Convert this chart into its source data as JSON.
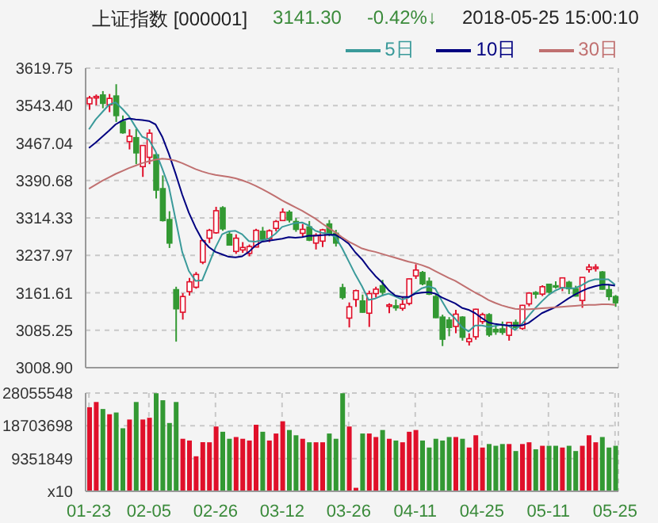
{
  "chart_data": [
    {
      "type": "candlestick",
      "title": "上证指数 [000001]",
      "annotations": [
        "3141.30",
        "-0.42%↓",
        "2018-05-25 15:00:10"
      ],
      "categories": [
        null,
        null,
        null,
        null,
        null,
        null,
        null,
        null,
        null,
        null,
        null,
        null,
        null,
        null,
        null,
        null,
        null,
        null,
        null,
        null,
        null,
        null,
        null,
        null,
        null,
        null,
        null,
        null,
        null,
        null,
        null,
        null,
        null,
        null,
        null,
        null,
        null,
        null,
        null,
        null,
        null,
        null,
        null,
        null,
        null,
        null,
        null,
        null,
        null,
        null,
        null,
        null,
        null,
        null,
        null,
        null,
        null,
        null,
        null,
        null,
        null,
        null,
        null,
        null,
        null,
        null,
        null,
        null,
        null,
        null,
        null,
        null,
        null,
        null,
        null,
        null,
        null,
        null,
        null,
        null
      ],
      "ohlc": [
        [
          3547,
          3563,
          3535,
          3559
        ],
        [
          3559,
          3566,
          3544,
          3562
        ],
        [
          3565,
          3573,
          3538,
          3548
        ],
        [
          3545,
          3567,
          3530,
          3558
        ],
        [
          3563,
          3587,
          3510,
          3523
        ],
        [
          3511,
          3523,
          3486,
          3488
        ],
        [
          3470,
          3495,
          3454,
          3481
        ],
        [
          3478,
          3496,
          3424,
          3447
        ],
        [
          3419,
          3463,
          3398,
          3462
        ],
        [
          3438,
          3495,
          3424,
          3487
        ],
        [
          3443,
          3445,
          3354,
          3371
        ],
        [
          3374,
          3401,
          3307,
          3309
        ],
        [
          3311,
          3328,
          3253,
          3263
        ],
        [
          3168,
          3174,
          3062,
          3129
        ],
        [
          3122,
          3161,
          3107,
          3154
        ],
        [
          3164,
          3192,
          3156,
          3184
        ],
        [
          3173,
          3204,
          3170,
          3199
        ],
        [
          3224,
          3270,
          3220,
          3268
        ],
        [
          3273,
          3292,
          3263,
          3289
        ],
        [
          3284,
          3337,
          3282,
          3329
        ],
        [
          3335,
          3338,
          3288,
          3292
        ],
        [
          3281,
          3286,
          3258,
          3259
        ],
        [
          3246,
          3281,
          3241,
          3273
        ],
        [
          3249,
          3265,
          3243,
          3254
        ],
        [
          3242,
          3260,
          3236,
          3256
        ],
        [
          3255,
          3292,
          3255,
          3289
        ],
        [
          3287,
          3296,
          3267,
          3271
        ],
        [
          3272,
          3291,
          3265,
          3288
        ],
        [
          3293,
          3310,
          3287,
          3307
        ],
        [
          3309,
          3334,
          3308,
          3326
        ],
        [
          3326,
          3330,
          3305,
          3310
        ],
        [
          3307,
          3314,
          3286,
          3291
        ],
        [
          3283,
          3302,
          3276,
          3291
        ],
        [
          3296,
          3308,
          3267,
          3269
        ],
        [
          3263,
          3283,
          3250,
          3279
        ],
        [
          3267,
          3292,
          3255,
          3290
        ],
        [
          3302,
          3310,
          3277,
          3281
        ],
        [
          3283,
          3290,
          3256,
          3263
        ],
        [
          3172,
          3180,
          3148,
          3152
        ],
        [
          3110,
          3142,
          3091,
          3133
        ],
        [
          3148,
          3168,
          3133,
          3166
        ],
        [
          3145,
          3158,
          3121,
          3122
        ],
        [
          3120,
          3166,
          3092,
          3160
        ],
        [
          3160,
          3174,
          3152,
          3169
        ],
        [
          3176,
          3188,
          3155,
          3163
        ],
        [
          3134,
          3140,
          3120,
          3137
        ],
        [
          3135,
          3148,
          3125,
          3131
        ],
        [
          3130,
          3153,
          3125,
          3138
        ],
        [
          3140,
          3191,
          3136,
          3190
        ],
        [
          3196,
          3220,
          3190,
          3208
        ],
        [
          3203,
          3206,
          3177,
          3180
        ],
        [
          3185,
          3193,
          3157,
          3159
        ],
        [
          3154,
          3160,
          3110,
          3111
        ],
        [
          3112,
          3117,
          3053,
          3067
        ],
        [
          3106,
          3112,
          3073,
          3091
        ],
        [
          3093,
          3127,
          3079,
          3118
        ],
        [
          3112,
          3114,
          3064,
          3071
        ],
        [
          3062,
          3079,
          3054,
          3068
        ],
        [
          3072,
          3129,
          3066,
          3128
        ],
        [
          3103,
          3121,
          3098,
          3117
        ],
        [
          3117,
          3120,
          3072,
          3076
        ],
        [
          3087,
          3096,
          3076,
          3082
        ],
        [
          3088,
          3103,
          3076,
          3081
        ],
        [
          3075,
          3101,
          3064,
          3101
        ],
        [
          3101,
          3107,
          3088,
          3091
        ],
        [
          3089,
          3137,
          3086,
          3136
        ],
        [
          3139,
          3163,
          3134,
          3161
        ],
        [
          3162,
          3165,
          3150,
          3159
        ],
        [
          3159,
          3177,
          3155,
          3174
        ],
        [
          3179,
          3180,
          3160,
          3163
        ],
        [
          3176,
          3185,
          3170,
          3174
        ],
        [
          3172,
          3193,
          3165,
          3192
        ],
        [
          3183,
          3186,
          3159,
          3170
        ],
        [
          3170,
          3176,
          3154,
          3155
        ],
        [
          3146,
          3193,
          3131,
          3193
        ],
        [
          3209,
          3220,
          3203,
          3214
        ],
        [
          3211,
          3220,
          3205,
          3214
        ],
        [
          3204,
          3206,
          3168,
          3169
        ],
        [
          3168,
          3179,
          3146,
          3154
        ],
        [
          3154,
          3157,
          3133,
          3141.3
        ]
      ],
      "series": [
        {
          "name": "5日",
          "type": "line",
          "color": "#3a9a9a",
          "values": [
            3495,
            3515,
            3530,
            3545,
            3550,
            3537,
            3522,
            3500,
            3480,
            3474,
            3450,
            3415,
            3378,
            3312,
            3245,
            3206,
            3186,
            3187,
            3220,
            3254,
            3281,
            3287,
            3288,
            3281,
            3267,
            3266,
            3269,
            3272,
            3282,
            3296,
            3300,
            3304,
            3305,
            3299,
            3288,
            3284,
            3282,
            3276,
            3253,
            3226,
            3199,
            3175,
            3147,
            3150,
            3156,
            3160,
            3154,
            3148,
            3152,
            3162,
            3171,
            3175,
            3170,
            3145,
            3122,
            3109,
            3092,
            3083,
            3095,
            3095,
            3092,
            3094,
            3097,
            3094,
            3086,
            3098,
            3114,
            3130,
            3144,
            3157,
            3166,
            3172,
            3171,
            3171,
            3177,
            3185,
            3189,
            3189,
            3189,
            3178
          ]
        },
        {
          "name": "10日",
          "type": "line",
          "color": "#000080",
          "values": [
            3457,
            3468,
            3480,
            3492,
            3505,
            3513,
            3517,
            3515,
            3514,
            3512,
            3505,
            3480,
            3445,
            3405,
            3362,
            3325,
            3295,
            3270,
            3255,
            3245,
            3240,
            3235,
            3234,
            3236,
            3245,
            3258,
            3266,
            3268,
            3270,
            3272,
            3275,
            3274,
            3275,
            3278,
            3278,
            3279,
            3280,
            3280,
            3272,
            3262,
            3244,
            3230,
            3212,
            3196,
            3183,
            3167,
            3156,
            3153,
            3153,
            3160,
            3162,
            3163,
            3160,
            3152,
            3146,
            3140,
            3131,
            3127,
            3120,
            3110,
            3101,
            3098,
            3096,
            3095,
            3095,
            3095,
            3100,
            3110,
            3120,
            3126,
            3132,
            3141,
            3150,
            3158,
            3165,
            3171,
            3175,
            3178,
            3178,
            3176
          ]
        },
        {
          "name": "30日",
          "type": "line",
          "color": "#c07070",
          "values": [
            3374,
            3382,
            3390,
            3397,
            3404,
            3410,
            3416,
            3421,
            3426,
            3430,
            3433,
            3435,
            3434,
            3431,
            3426,
            3420,
            3414,
            3409,
            3405,
            3402,
            3400,
            3398,
            3395,
            3391,
            3386,
            3380,
            3373,
            3366,
            3358,
            3350,
            3343,
            3336,
            3329,
            3321,
            3313,
            3303,
            3294,
            3285,
            3275,
            3266,
            3259,
            3252,
            3248,
            3245,
            3241,
            3237,
            3233,
            3229,
            3225,
            3222,
            3218,
            3213,
            3206,
            3199,
            3192,
            3186,
            3178,
            3170,
            3162,
            3155,
            3147,
            3141,
            3136,
            3132,
            3129,
            3128,
            3128,
            3129,
            3130,
            3131,
            3132,
            3133,
            3134,
            3135,
            3136,
            3137,
            3137,
            3138,
            3138,
            3137
          ]
        }
      ],
      "ylim": [
        3008.9,
        3619.75
      ],
      "yticks": [
        {
          "value": 3008.9,
          "label": "3008.90"
        },
        3085.25,
        3161.61,
        3237.97,
        3314.33,
        3390.68,
        3467.04,
        {
          "value": 3543.4,
          "label": "3543.40"
        },
        3619.75
      ],
      "grid": true,
      "legend": "top right",
      "tick_labels": "y"
    },
    {
      "type": "bar",
      "categories": [
        "01-23",
        null,
        null,
        null,
        null,
        null,
        null,
        null,
        null,
        "02-05",
        null,
        null,
        null,
        null,
        null,
        null,
        null,
        null,
        null,
        "02-26",
        null,
        null,
        null,
        null,
        null,
        null,
        null,
        null,
        null,
        "03-12",
        null,
        null,
        null,
        null,
        null,
        null,
        null,
        null,
        null,
        "03-26",
        null,
        null,
        null,
        null,
        null,
        null,
        null,
        null,
        null,
        "04-11",
        null,
        null,
        null,
        null,
        null,
        null,
        null,
        null,
        null,
        "04-25",
        null,
        null,
        null,
        null,
        null,
        null,
        null,
        null,
        null,
        "05-11",
        null,
        null,
        null,
        null,
        null,
        null,
        null,
        null,
        null,
        "05-25"
      ],
      "values": [
        24000000,
        25500000,
        23500000,
        22000000,
        22500000,
        18000000,
        20500000,
        25500000,
        20500000,
        21000000,
        28000000,
        26000000,
        19500000,
        25500000,
        15000000,
        14500000,
        10000000,
        14000000,
        14000000,
        18500000,
        17000000,
        15000000,
        15500000,
        15000000,
        14500000,
        19000000,
        17000000,
        14500000,
        16500000,
        20000000,
        17500000,
        16000000,
        15000000,
        14000000,
        14000000,
        14000000,
        16500000,
        15000000,
        28000000,
        18500000,
        1000000,
        16500000,
        16500000,
        15500000,
        17500000,
        15000000,
        14500000,
        14000000,
        17000000,
        17500000,
        14500000,
        12500000,
        15000000,
        14500000,
        15500000,
        15500000,
        15000000,
        12500000,
        16000000,
        12500000,
        13500000,
        13000000,
        13500000,
        13500000,
        11500000,
        13500000,
        14000000,
        12000000,
        13000000,
        13000000,
        13000000,
        12500000,
        13000000,
        11500000,
        13000000,
        16000000,
        14000000,
        15500000,
        12500000,
        13000000
      ],
      "colors": [
        "#e0102a",
        "#e0102a",
        "#339933",
        "#e0102a",
        "#339933",
        "#339933",
        "#e0102a",
        "#339933",
        "#e0102a",
        "#e0102a",
        "#339933",
        "#339933",
        "#339933",
        "#339933",
        "#e0102a",
        "#e0102a",
        "#e0102a",
        "#e0102a",
        "#e0102a",
        "#e0102a",
        "#339933",
        "#339933",
        "#e0102a",
        "#e0102a",
        "#e0102a",
        "#e0102a",
        "#339933",
        "#e0102a",
        "#e0102a",
        "#e0102a",
        "#339933",
        "#339933",
        "#e0102a",
        "#339933",
        "#e0102a",
        "#e0102a",
        "#339933",
        "#339933",
        "#339933",
        "#e0102a",
        "#e0102a",
        "#339933",
        "#e0102a",
        "#e0102a",
        "#339933",
        "#e0102a",
        "#339933",
        "#e0102a",
        "#e0102a",
        "#e0102a",
        "#339933",
        "#339933",
        "#339933",
        "#339933",
        "#339933",
        "#e0102a",
        "#339933",
        "#e0102a",
        "#e0102a",
        "#e0102a",
        "#339933",
        "#339933",
        "#339933",
        "#e0102a",
        "#339933",
        "#e0102a",
        "#e0102a",
        "#339933",
        "#e0102a",
        "#339933",
        "#339933",
        "#e0102a",
        "#339933",
        "#339933",
        "#e0102a",
        "#e0102a",
        "#e0102a",
        "#339933",
        "#339933",
        "#339933"
      ],
      "ylim": [
        0,
        28055548
      ],
      "yticks": [
        {
          "value": 0,
          "label": "x10"
        },
        9351849,
        18703698,
        28055548
      ],
      "grid": true
    }
  ]
}
